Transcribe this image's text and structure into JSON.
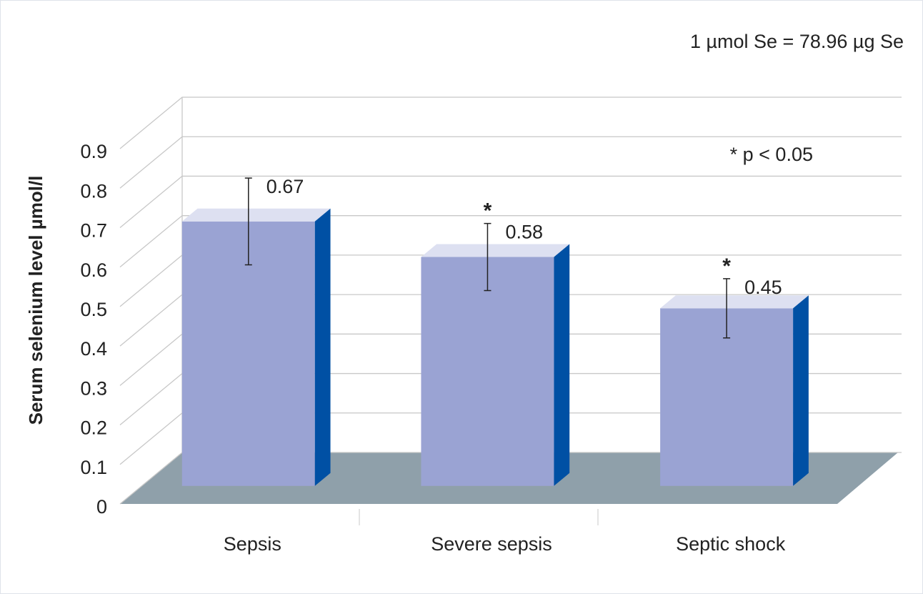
{
  "chart_data": {
    "type": "bar3d",
    "note": "1 µmol Se = 78.96 µg Se",
    "legend_note": "* p < 0.05",
    "ylabel": "Serum selenium level µmol/l",
    "categories": [
      "Sepsis",
      "Severe sepsis",
      "Septic shock"
    ],
    "values": [
      0.67,
      0.58,
      0.45
    ],
    "errors": [
      0.11,
      0.085,
      0.075
    ],
    "significance": [
      null,
      "*",
      "*"
    ],
    "color": "#9aa3d3",
    "top_color": "#dde0f1",
    "side_color": "#0050a4",
    "ylim": [
      0,
      0.9
    ],
    "yticks": [
      0,
      0.1,
      0.2,
      0.3,
      0.4,
      0.5,
      0.6,
      0.7,
      0.8,
      0.9
    ],
    "grid": true
  }
}
